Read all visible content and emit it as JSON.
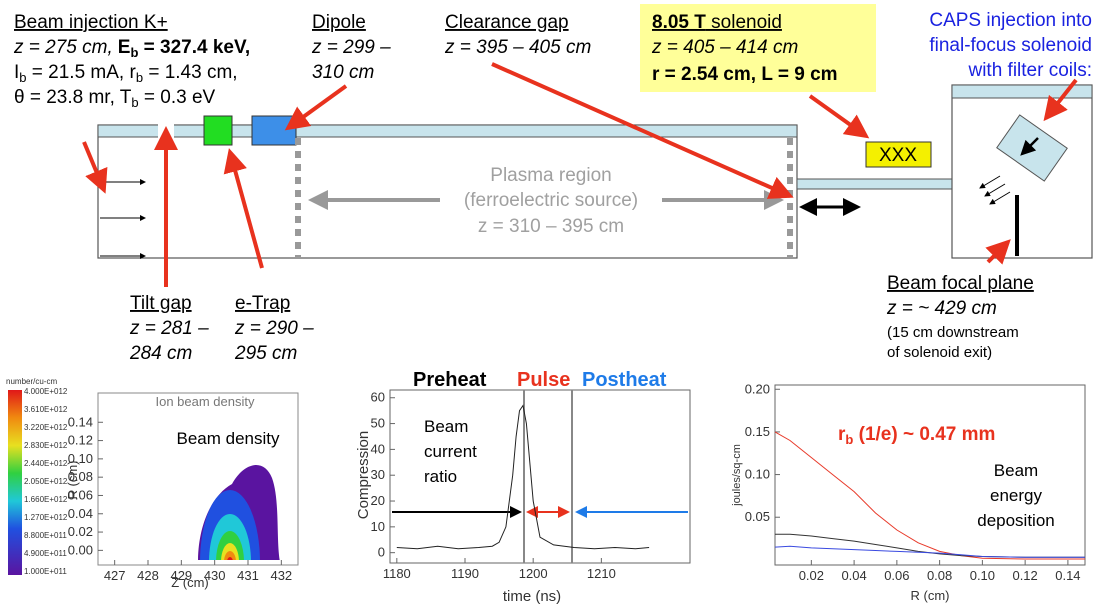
{
  "beam_injection": {
    "title": "Beam injection K+",
    "line1": [
      "z = 275 cm,",
      "E",
      "b",
      " = 327.4 keV,"
    ],
    "line2": [
      "I",
      "b",
      " = 21.5 mA, r",
      "b",
      " = 1.43 cm,"
    ],
    "line3": [
      "θ = 23.8 mr, T",
      "b",
      " = 0.3 eV"
    ]
  },
  "dipole": {
    "title": "Dipole",
    "lines": [
      "z = 299 –",
      "310 cm"
    ]
  },
  "clearance_gap": {
    "title": "Clearance gap",
    "lines": [
      "z = 395 – 405 cm"
    ]
  },
  "solenoid": {
    "line0": [
      "8.05 T",
      " solenoid"
    ],
    "line1": "z = 405 – 414 cm",
    "line2": "r = 2.54 cm, L = 9 cm",
    "coil_label": "XXX"
  },
  "caps": {
    "lines": [
      "CAPS injection into",
      "final-focus solenoid",
      "with filter coils:"
    ]
  },
  "plasma_region": {
    "lines": [
      "Plasma region",
      "(ferroelectric source)",
      "z = 310 – 395 cm"
    ]
  },
  "tilt_gap": {
    "title": "Tilt gap",
    "lines": [
      "z = 281 –",
      "284 cm"
    ]
  },
  "e_trap": {
    "title": "e-Trap",
    "lines": [
      "z = 290 –",
      "295 cm"
    ]
  },
  "focal_plane": {
    "title": "Beam focal plane",
    "lines": [
      "z = ~ 429 cm"
    ],
    "notes": [
      "(15 cm downstream",
      "of solenoid exit)"
    ]
  },
  "density_plot": {
    "title": "Ion beam density",
    "label": "Beam density",
    "xlabel": "Z (cm)",
    "ylabel": "R (cm)",
    "xlim": [
      426.5,
      432.5
    ],
    "ylim": [
      -0.016,
      0.172
    ],
    "xticks": [
      427,
      428,
      429,
      430,
      431,
      432
    ],
    "yticks": [
      {
        "value": 0,
        "label": "0.00"
      },
      {
        "value": 0.02,
        "label": "0.02"
      },
      {
        "value": 0.04,
        "label": "0.04"
      },
      {
        "value": 0.06,
        "label": "0.06"
      },
      {
        "value": 0.08,
        "label": "0.08"
      },
      {
        "value": 0.1,
        "label": "0.10"
      },
      {
        "value": 0.12,
        "label": "0.12"
      },
      {
        "value": 0.14,
        "label": "0.14"
      }
    ],
    "colorbar_title": "number/cu-cm",
    "colorbar_labels": [
      "4.000E+012",
      "3.610E+012",
      "3.220E+012",
      "2.830E+012",
      "2.440E+012",
      "2.050E+012",
      "1.660E+012",
      "1.270E+012",
      "8.800E+011",
      "4.900E+011",
      "1.000E+011"
    ]
  },
  "compression_plot": {
    "phases": [
      "Preheat",
      "Pulse",
      "Postheat"
    ],
    "label": [
      "Beam",
      "current",
      "ratio"
    ],
    "xlabel": "time (ns)",
    "ylabel": "Compression",
    "xlim": [
      1179,
      1223
    ],
    "ylim": [
      -4,
      63
    ],
    "xticks": [
      1180,
      1190,
      1200,
      1210
    ],
    "yticks": [
      0,
      10,
      20,
      30,
      40,
      50,
      60
    ],
    "time": [
      1180,
      1183,
      1186,
      1189,
      1192,
      1194,
      1195,
      1196,
      1197,
      1197.5,
      1198,
      1198.5,
      1199,
      1199.5,
      1200,
      1201,
      1203,
      1206,
      1209,
      1212,
      1215,
      1217
    ],
    "compression": [
      2,
      1.5,
      2.5,
      1.5,
      2,
      2.5,
      4,
      10,
      30,
      45,
      55,
      57,
      50,
      35,
      20,
      6,
      3,
      2,
      1.5,
      2,
      1.5,
      2
    ]
  },
  "energy_plot": {
    "annotation": [
      "r",
      "b",
      " (1/e) ~ 0.47 mm"
    ],
    "label": [
      "Beam",
      "energy",
      "deposition"
    ],
    "xlabel": "R (cm)",
    "ylabel": "joules/sq-cm",
    "xlim": [
      0.003,
      0.148
    ],
    "ylim": [
      -0.006,
      0.205
    ],
    "xticks": [
      {
        "value": 0.02,
        "label": "0.02"
      },
      {
        "value": 0.04,
        "label": "0.04"
      },
      {
        "value": 0.06,
        "label": "0.06"
      },
      {
        "value": 0.08,
        "label": "0.08"
      },
      {
        "value": 0.1,
        "label": "0.10"
      },
      {
        "value": 0.12,
        "label": "0.12"
      },
      {
        "value": 0.14,
        "label": "0.14"
      }
    ],
    "yticks": [
      {
        "value": 0.05,
        "label": "0.05"
      },
      {
        "value": 0.1,
        "label": "0.10"
      },
      {
        "value": 0.15,
        "label": "0.15"
      },
      {
        "value": 0.2,
        "label": "0.20"
      }
    ],
    "r": [
      0.003,
      0.01,
      0.02,
      0.03,
      0.04,
      0.05,
      0.06,
      0.07,
      0.08,
      0.09,
      0.1,
      0.12,
      0.148
    ],
    "curves": [
      {
        "color": "#e83a2a",
        "values": [
          0.15,
          0.14,
          0.12,
          0.1,
          0.08,
          0.055,
          0.035,
          0.02,
          0.01,
          0.005,
          0.002,
          0.001,
          0.001
        ]
      },
      {
        "color": "#333333",
        "values": [
          0.03,
          0.03,
          0.028,
          0.025,
          0.022,
          0.018,
          0.014,
          0.01,
          0.007,
          0.005,
          0.004,
          0.003,
          0.003
        ]
      },
      {
        "color": "#3a4ae0",
        "values": [
          0.015,
          0.016,
          0.014,
          0.013,
          0.012,
          0.011,
          0.01,
          0.009,
          0.008,
          0.006,
          0.004,
          0.003,
          0.003
        ]
      }
    ]
  }
}
